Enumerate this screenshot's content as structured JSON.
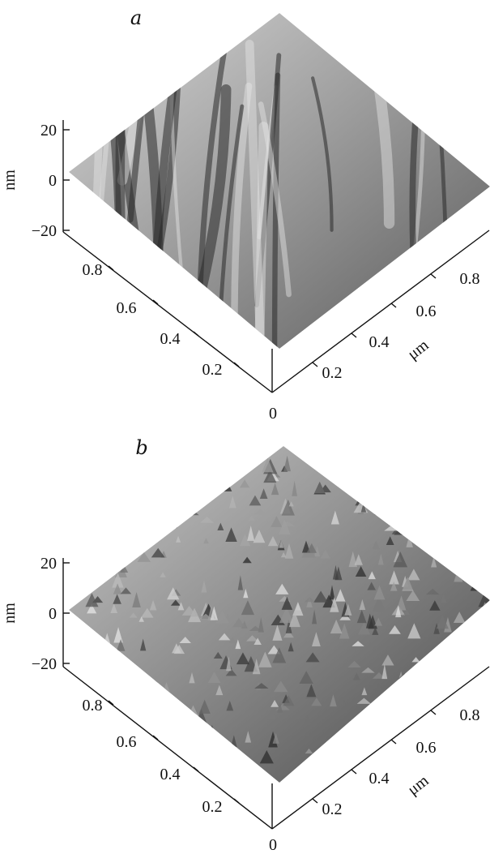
{
  "chart_data": [
    {
      "type": "surface",
      "panel_label": "a",
      "z_axis": {
        "label": "nm",
        "ticks": [
          "20",
          "0",
          "−20"
        ],
        "range": [
          -20,
          20
        ]
      },
      "y_axis": {
        "label": "",
        "ticks": [
          "0.8",
          "0.6",
          "0.4",
          "0.2"
        ],
        "range": [
          0,
          1
        ]
      },
      "x_axis": {
        "label": "μm",
        "ticks": [
          "0.2",
          "0.4",
          "0.6",
          "0.8"
        ],
        "range": [
          0,
          1
        ]
      },
      "origin_label": "0",
      "surface_style": "smooth elongated ridges and valleys running diagonally",
      "roughness": "low"
    },
    {
      "type": "surface",
      "panel_label": "b",
      "z_axis": {
        "label": "nm",
        "ticks": [
          "20",
          "0",
          "−20"
        ],
        "range": [
          -20,
          20
        ]
      },
      "y_axis": {
        "label": "",
        "ticks": [
          "0.8",
          "0.6",
          "0.4",
          "0.2"
        ],
        "range": [
          0,
          1
        ]
      },
      "x_axis": {
        "label": "μm",
        "ticks": [
          "0.2",
          "0.4",
          "0.6",
          "0.8"
        ],
        "range": [
          0,
          1
        ]
      },
      "origin_label": "0",
      "surface_style": "dense granular peaks",
      "roughness": "high"
    }
  ],
  "colors": {
    "surface_light": "#d9d9d9",
    "surface_dark": "#1e1e1e",
    "axis": "#111111"
  }
}
